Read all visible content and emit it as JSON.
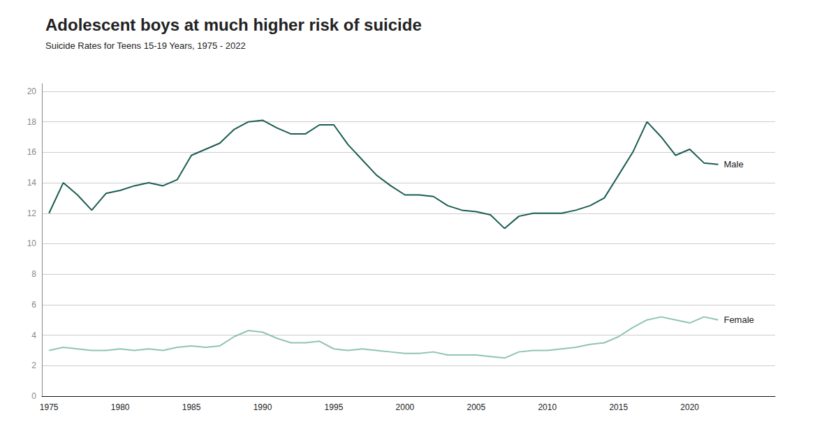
{
  "chart_data": {
    "type": "line",
    "title": "Adolescent boys at much higher risk of suicide",
    "subtitle": "Suicide Rates for Teens 15-19 Years, 1975 - 2022",
    "x": [
      1975,
      1976,
      1977,
      1978,
      1979,
      1980,
      1981,
      1982,
      1983,
      1984,
      1985,
      1986,
      1987,
      1988,
      1989,
      1990,
      1991,
      1992,
      1993,
      1994,
      1995,
      1996,
      1997,
      1998,
      1999,
      2000,
      2001,
      2002,
      2003,
      2004,
      2005,
      2006,
      2007,
      2008,
      2009,
      2010,
      2011,
      2012,
      2013,
      2014,
      2015,
      2016,
      2017,
      2018,
      2019,
      2020,
      2021,
      2022
    ],
    "series": [
      {
        "name": "Male",
        "color": "#1a5c52",
        "values": [
          12.0,
          14.0,
          13.2,
          12.2,
          13.3,
          13.5,
          13.8,
          14.0,
          13.8,
          14.2,
          15.8,
          16.2,
          16.6,
          17.5,
          18.0,
          18.1,
          17.6,
          17.2,
          17.2,
          17.8,
          17.8,
          16.5,
          15.5,
          14.5,
          13.8,
          13.2,
          13.2,
          13.1,
          12.5,
          12.2,
          12.1,
          11.9,
          11.0,
          11.8,
          12.0,
          12.0,
          12.0,
          12.2,
          12.5,
          13.0,
          14.5,
          16.0,
          18.0,
          17.0,
          15.8,
          16.2,
          15.3,
          15.2
        ]
      },
      {
        "name": "Female",
        "color": "#8fc4b5",
        "values": [
          3.0,
          3.2,
          3.1,
          3.0,
          3.0,
          3.1,
          3.0,
          3.1,
          3.0,
          3.2,
          3.3,
          3.2,
          3.3,
          3.9,
          4.3,
          4.2,
          3.8,
          3.5,
          3.5,
          3.6,
          3.1,
          3.0,
          3.1,
          3.0,
          2.9,
          2.8,
          2.8,
          2.9,
          2.7,
          2.7,
          2.7,
          2.6,
          2.5,
          2.9,
          3.0,
          3.0,
          3.1,
          3.2,
          3.4,
          3.5,
          3.9,
          4.5,
          5.0,
          5.2,
          5.0,
          4.8,
          5.2,
          5.0
        ]
      }
    ],
    "xlim": [
      1974.5,
      2026
    ],
    "xticks": [
      1975,
      1980,
      1985,
      1990,
      1995,
      2000,
      2005,
      2010,
      2015,
      2020
    ],
    "ylim": [
      0,
      20.5
    ],
    "yticks": [
      0,
      2,
      4,
      6,
      8,
      10,
      12,
      14,
      16,
      18,
      20
    ],
    "grid": true
  }
}
